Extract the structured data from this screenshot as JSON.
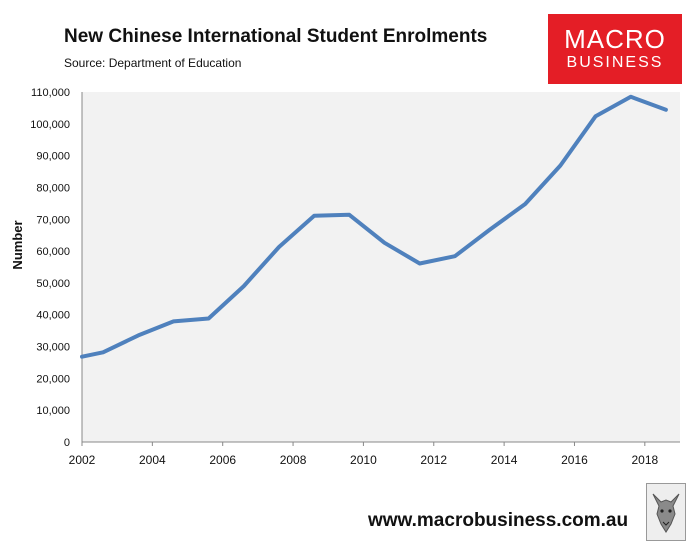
{
  "title": "New Chinese International Student Enrolments",
  "subtitle": "Source: Department of Education",
  "logo": {
    "line1": "MACRO",
    "line2": "BUSINESS"
  },
  "footer_url": "www.macrobusiness.com.au",
  "colors": {
    "line": "#4f81bd",
    "plot_bg": "#f2f2f2",
    "logo_bg": "#e41e26"
  },
  "chart_data": {
    "type": "line",
    "title": "New Chinese International Student Enrolments",
    "subtitle": "Source: Department of Education",
    "xlabel": "",
    "ylabel": "Number",
    "xlim": [
      2002,
      2019
    ],
    "ylim": [
      0,
      110000
    ],
    "x_ticks": [
      "2002",
      "2004",
      "2006",
      "2008",
      "2010",
      "2012",
      "2014",
      "2016",
      "2018"
    ],
    "y_ticks": [
      "0",
      "10,000",
      "20,000",
      "30,000",
      "40,000",
      "50,000",
      "60,000",
      "70,000",
      "80,000",
      "90,000",
      "100,000",
      "110,000"
    ],
    "grid": false,
    "series": [
      {
        "x": [
          2002,
          2002.6,
          2003.6,
          2004.6,
          2005.6,
          2006.6,
          2007.6,
          2008.6,
          2009.6,
          2010.6,
          2011.6,
          2012.6,
          2013.6,
          2014.6,
          2015.6,
          2016.6,
          2017.6,
          2018.6
        ],
        "values": [
          26800,
          28200,
          33500,
          37900,
          38800,
          49000,
          61300,
          71100,
          71400,
          62600,
          56100,
          58400,
          66800,
          74800,
          86900,
          102400,
          108500,
          104400
        ]
      }
    ]
  }
}
